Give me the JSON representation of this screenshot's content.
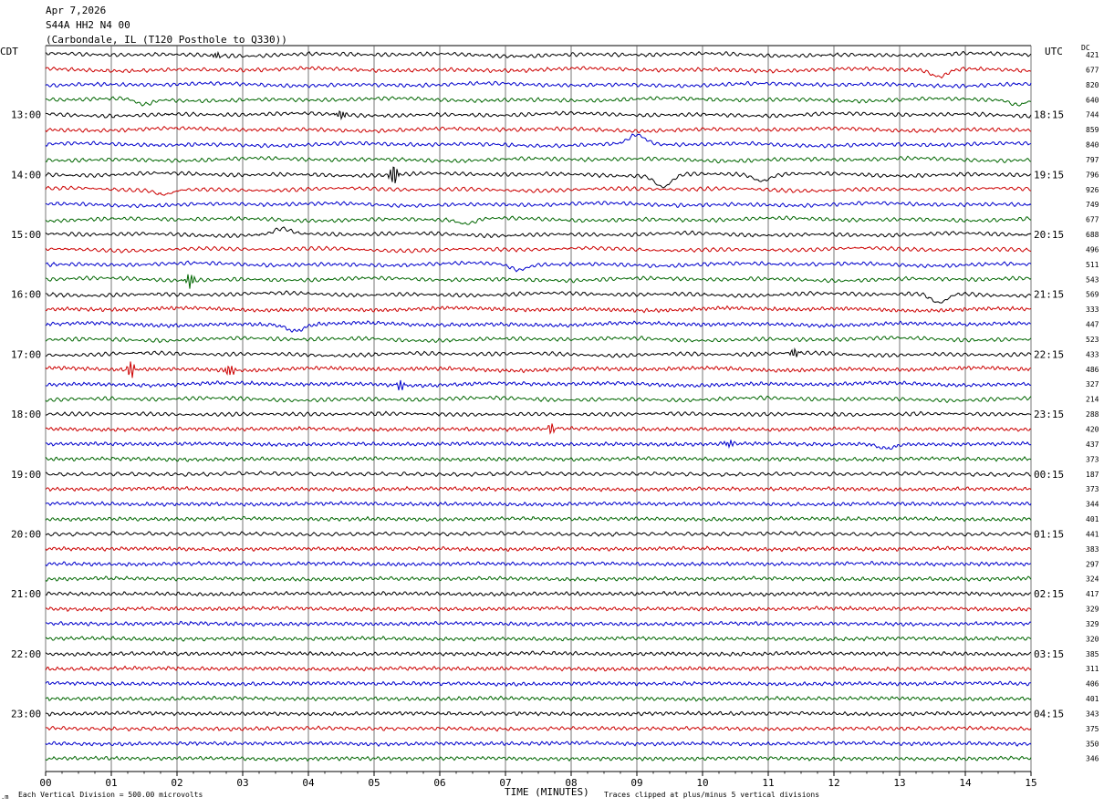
{
  "header": {
    "date": "Apr 7,2026",
    "station": "S44A HH2 N4 00",
    "location": "(Carbondale, IL (T120 Posthole to Q330))"
  },
  "left_tz": "CDT",
  "right_tz": "UTC",
  "dc_label": "DC",
  "footer": {
    "scale": "Each Vertical Division =  500.00 microvolts",
    "clip": "Traces clipped at plus/minus 5 vertical divisions"
  },
  "chart_data": {
    "type": "line",
    "title": "",
    "xlabel": "TIME (MINUTES)",
    "xlim": [
      0,
      15
    ],
    "x_ticks": [
      "00",
      "01",
      "02",
      "03",
      "04",
      "05",
      "06",
      "07",
      "08",
      "09",
      "10",
      "11",
      "12",
      "13",
      "14",
      "15"
    ],
    "trace_colors": [
      "#000000",
      "#cc0000",
      "#0000cc",
      "#006600"
    ],
    "left_hour_labels": [
      "13:00",
      "14:00",
      "15:00",
      "16:00",
      "17:00",
      "18:00",
      "19:00",
      "20:00",
      "21:00",
      "22:00",
      "23:00"
    ],
    "right_hour_labels": [
      "18:15",
      "19:15",
      "20:15",
      "21:15",
      "22:15",
      "23:15",
      "00:15",
      "01:15",
      "02:15",
      "03:15",
      "04:15"
    ],
    "dc_offsets": [
      421,
      677,
      820,
      640,
      744,
      859,
      840,
      797,
      796,
      926,
      749,
      677,
      688,
      496,
      511,
      543,
      569,
      333,
      447,
      523,
      433,
      486,
      327,
      214,
      288,
      420,
      437,
      373,
      187,
      373,
      344,
      401,
      441,
      383,
      297,
      324,
      417,
      329,
      329,
      320,
      385,
      311,
      406,
      401,
      343,
      375,
      350,
      346
    ],
    "events": [
      {
        "trace": 0,
        "minute": 2.6,
        "amp": 3,
        "kind": "burst"
      },
      {
        "trace": 1,
        "minute": 13.6,
        "amp": 8,
        "kind": "dip"
      },
      {
        "trace": 3,
        "minute": 1.5,
        "amp": 6,
        "kind": "dip"
      },
      {
        "trace": 3,
        "minute": 14.8,
        "amp": 6,
        "kind": "dip"
      },
      {
        "trace": 4,
        "minute": 4.5,
        "amp": 5,
        "kind": "burst"
      },
      {
        "trace": 6,
        "minute": 9.0,
        "amp": -10,
        "kind": "dip"
      },
      {
        "trace": 8,
        "minute": 5.3,
        "amp": 12,
        "kind": "burst"
      },
      {
        "trace": 8,
        "minute": 9.4,
        "amp": 13,
        "kind": "dip"
      },
      {
        "trace": 8,
        "minute": 10.9,
        "amp": 7,
        "kind": "dip"
      },
      {
        "trace": 9,
        "minute": 1.8,
        "amp": 5,
        "kind": "dip"
      },
      {
        "trace": 11,
        "minute": 6.4,
        "amp": 5,
        "kind": "dip"
      },
      {
        "trace": 12,
        "minute": 3.6,
        "amp": -6,
        "kind": "dip"
      },
      {
        "trace": 14,
        "minute": 7.2,
        "amp": 6,
        "kind": "dip"
      },
      {
        "trace": 15,
        "minute": 2.2,
        "amp": 8,
        "kind": "burst"
      },
      {
        "trace": 16,
        "minute": 13.6,
        "amp": 10,
        "kind": "dip"
      },
      {
        "trace": 18,
        "minute": 3.8,
        "amp": 7,
        "kind": "dip"
      },
      {
        "trace": 20,
        "minute": 11.4,
        "amp": 5,
        "kind": "burst"
      },
      {
        "trace": 21,
        "minute": 1.3,
        "amp": 9,
        "kind": "burst"
      },
      {
        "trace": 21,
        "minute": 2.8,
        "amp": 7,
        "kind": "burst"
      },
      {
        "trace": 22,
        "minute": 5.4,
        "amp": 5,
        "kind": "burst"
      },
      {
        "trace": 25,
        "minute": 7.7,
        "amp": 5,
        "kind": "burst"
      },
      {
        "trace": 26,
        "minute": 10.4,
        "amp": 4,
        "kind": "burst"
      },
      {
        "trace": 26,
        "minute": 12.8,
        "amp": 5,
        "kind": "dip"
      }
    ]
  }
}
